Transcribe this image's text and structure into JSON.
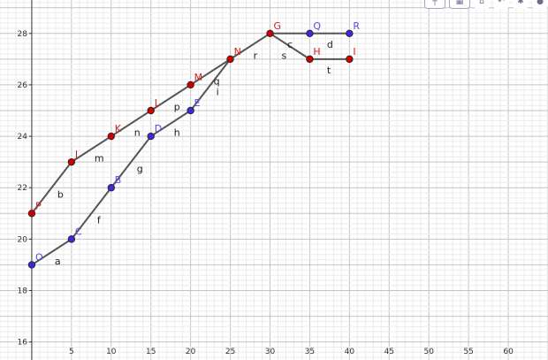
{
  "app": {
    "toolbar": [
      {
        "name": "graph-style-icon",
        "glyph": "┼"
      },
      {
        "name": "grid-icon",
        "glyph": "▦"
      },
      {
        "name": "home-icon",
        "glyph": "⌂"
      },
      {
        "name": "undo-icon",
        "glyph": "↶"
      },
      {
        "name": "settings-icon",
        "glyph": "✱"
      },
      {
        "name": "toggle-icon",
        "glyph": "●"
      }
    ]
  },
  "chart_data": {
    "type": "scatter",
    "xlim": [
      -4,
      65
    ],
    "ylim": [
      15.3,
      29.3
    ],
    "grid": true,
    "x_ticks": [
      5,
      10,
      15,
      20,
      25,
      30,
      35,
      40,
      45,
      50,
      55,
      60
    ],
    "y_ticks": [
      16,
      18,
      20,
      22,
      24,
      26,
      28
    ],
    "colors": {
      "red": "#cc0000",
      "blue": "#3b29d6",
      "line": "#555555",
      "redLabel": "#d32020",
      "blueLabel": "#5a4ae0"
    },
    "points": [
      {
        "label": "O",
        "x": 0,
        "y": 19,
        "color": "blue"
      },
      {
        "label": "C",
        "x": 5,
        "y": 20,
        "color": "blue"
      },
      {
        "label": "B",
        "x": 10,
        "y": 22,
        "color": "blue"
      },
      {
        "label": "D",
        "x": 15,
        "y": 24,
        "color": "blue"
      },
      {
        "label": "E",
        "x": 20,
        "y": 25,
        "color": "blue"
      },
      {
        "label": "Q",
        "x": 35,
        "y": 28,
        "color": "blue"
      },
      {
        "label": "R",
        "x": 40,
        "y": 28,
        "color": "blue"
      },
      {
        "label": "P",
        "x": 0,
        "y": 21,
        "color": "red"
      },
      {
        "label": "J",
        "x": 5,
        "y": 23,
        "color": "red"
      },
      {
        "label": "K",
        "x": 10,
        "y": 24,
        "color": "red"
      },
      {
        "label": "L",
        "x": 15,
        "y": 25,
        "color": "red"
      },
      {
        "label": "M",
        "x": 20,
        "y": 26,
        "color": "red"
      },
      {
        "label": "N",
        "x": 25,
        "y": 27,
        "color": "red"
      },
      {
        "label": "G",
        "x": 30,
        "y": 28,
        "color": "red"
      },
      {
        "label": "H",
        "x": 35,
        "y": 27,
        "color": "red"
      },
      {
        "label": "I",
        "x": 40,
        "y": 27,
        "color": "red"
      }
    ],
    "segments": [
      {
        "from": "O",
        "to": "C",
        "label": "a"
      },
      {
        "from": "C",
        "to": "B",
        "label": "f"
      },
      {
        "from": "B",
        "to": "D",
        "label": "g"
      },
      {
        "from": "D",
        "to": "E",
        "label": "h"
      },
      {
        "from": "E",
        "to": "N",
        "label": "i"
      },
      {
        "from": "P",
        "to": "J",
        "label": "b"
      },
      {
        "from": "J",
        "to": "K",
        "label": "m"
      },
      {
        "from": "K",
        "to": "L",
        "label": "n"
      },
      {
        "from": "L",
        "to": "M",
        "label": "p"
      },
      {
        "from": "M",
        "to": "N",
        "label": "q"
      },
      {
        "from": "N",
        "to": "G",
        "label": "r"
      },
      {
        "from": "G",
        "to": "Q",
        "label": "c"
      },
      {
        "from": "Q",
        "to": "R",
        "label": "d"
      },
      {
        "from": "G",
        "to": "H",
        "label": "s"
      },
      {
        "from": "H",
        "to": "I",
        "label": "t"
      }
    ]
  }
}
